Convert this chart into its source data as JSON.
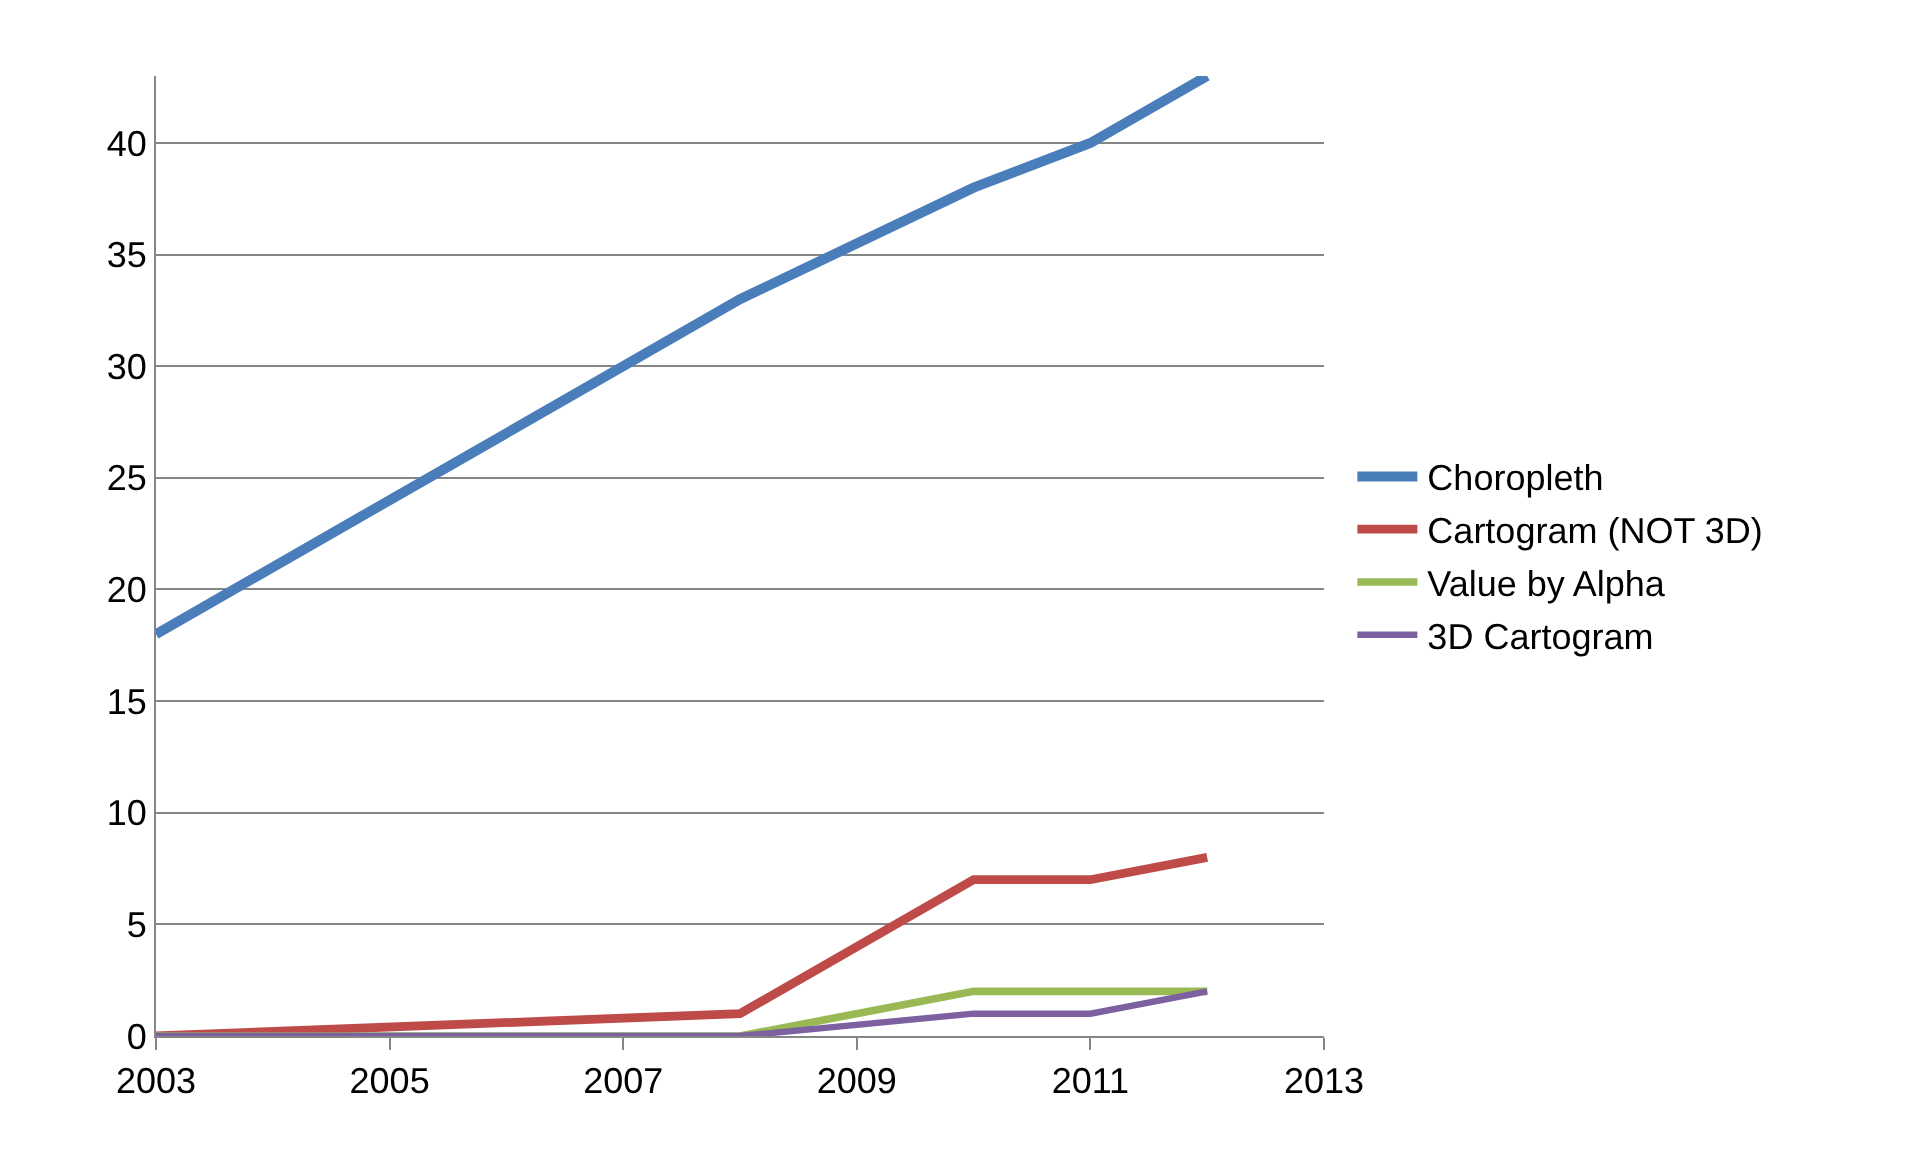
{
  "chart_data": {
    "type": "line",
    "x": [
      2003,
      2008,
      2010,
      2011,
      2012
    ],
    "series": [
      {
        "name": "Choropleth",
        "color": "#4a7ebb",
        "values": [
          18,
          33,
          38,
          40,
          43
        ]
      },
      {
        "name": "Cartogram (NOT 3D)",
        "color": "#be4b48",
        "values": [
          0,
          1,
          7,
          7,
          8
        ]
      },
      {
        "name": "Value by Alpha",
        "color": "#98b954",
        "values": [
          0,
          0,
          2,
          2,
          2
        ]
      },
      {
        "name": "3D Cartogram",
        "color": "#7d60a0",
        "values": [
          0,
          0,
          1,
          1,
          2
        ]
      }
    ],
    "xlim": [
      2003,
      2013
    ],
    "xticks": [
      2003,
      2005,
      2007,
      2009,
      2011,
      2013
    ],
    "ylim": [
      0,
      43
    ],
    "yticks": [
      0,
      5,
      10,
      15,
      20,
      25,
      30,
      35,
      40
    ],
    "grid": "y",
    "legend": "right",
    "marker": "none",
    "line_style": "solid"
  }
}
